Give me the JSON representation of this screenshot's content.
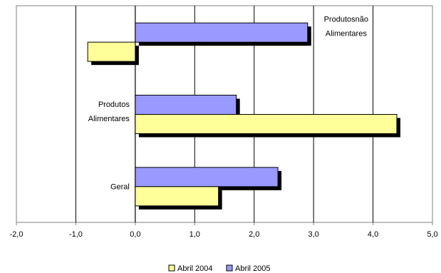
{
  "chart_data": {
    "type": "bar",
    "orientation": "horizontal",
    "categories": [
      "Produtos não Alimentares",
      "Produtos Alimentares",
      "Geral"
    ],
    "category_label_lines": [
      [
        "Produtosnão",
        "Alimentares"
      ],
      [
        "Produtos",
        "Alimentares"
      ],
      [
        "Geral"
      ]
    ],
    "series": [
      {
        "name": "Abril 2004",
        "values": [
          -0.8,
          4.4,
          1.4
        ],
        "color": "#FFFF99"
      },
      {
        "name": "Abril 2005",
        "values": [
          2.9,
          1.7,
          2.4
        ],
        "color": "#9999FF"
      }
    ],
    "xlim": [
      -2.0,
      5.0
    ],
    "xticks": [
      "-2,0",
      "-1,0",
      "0,0",
      "1,0",
      "2,0",
      "3,0",
      "4,0",
      "5,0"
    ],
    "title": "",
    "xlabel": "",
    "ylabel": "",
    "grid": true,
    "legend_position": "bottom",
    "shadow_color": "#000000"
  }
}
